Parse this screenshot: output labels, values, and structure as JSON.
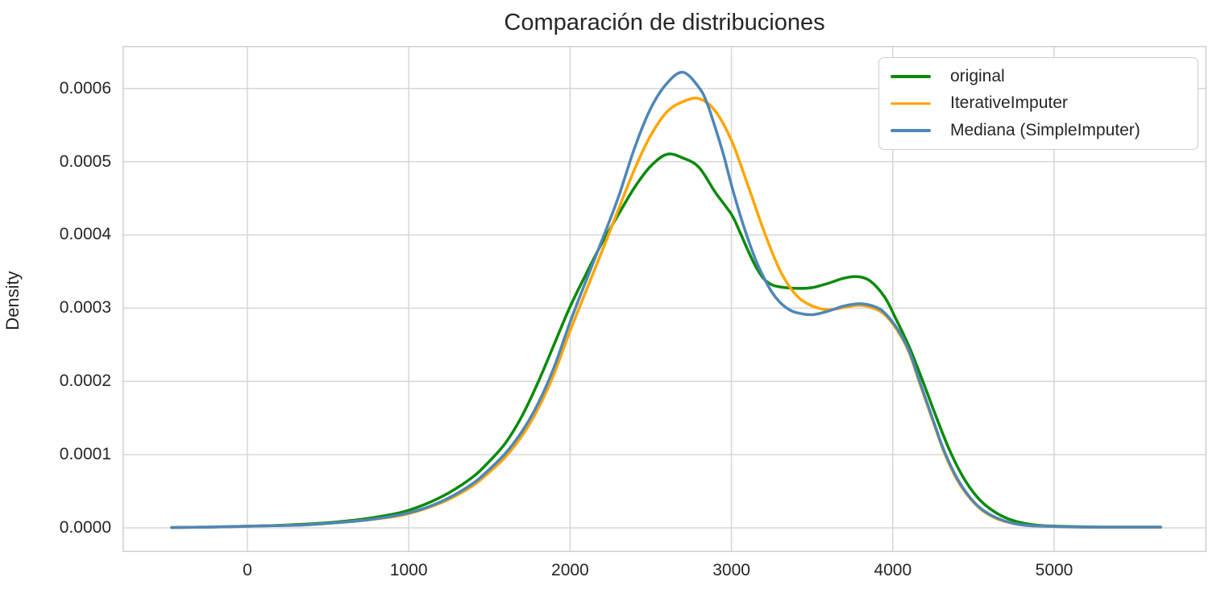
{
  "title": "Comparación de distribuciones",
  "colors": {
    "original": "#0a8a0a",
    "iterative_imputer": "#ffa500",
    "mediana_simple_imputer": "#4e86b8",
    "grid": "#d6d6d6",
    "axes_border": "#d0d0d0",
    "text": "#262626",
    "background": "#ffffff"
  },
  "chart_data": {
    "type": "line",
    "title": "Comparación de distribuciones",
    "xlabel": "",
    "ylabel": "Density",
    "grid": true,
    "legend_position": "upper right",
    "xlim": [
      -774,
      5944
    ],
    "ylim": [
      -3.3e-05,
      0.000658
    ],
    "x_ticks": [
      0,
      1000,
      2000,
      3000,
      4000,
      5000
    ],
    "x_tick_labels": [
      "0",
      "1000",
      "2000",
      "3000",
      "4000",
      "5000"
    ],
    "y_ticks": [
      0,
      0.0001,
      0.0002,
      0.0003,
      0.0004,
      0.0005,
      0.0006
    ],
    "y_tick_labels": [
      "0.0000",
      "0.0001",
      "0.0002",
      "0.0003",
      "0.0004",
      "0.0005",
      "0.0006"
    ],
    "series": [
      {
        "name": "original",
        "color": "#0a8a0a",
        "peak": {
          "x": 2600,
          "density": 0.00051
        },
        "points": [
          [
            -470,
            5e-07
          ],
          [
            -250,
            1e-06
          ],
          [
            -50,
            2e-06
          ],
          [
            150,
            3e-06
          ],
          [
            350,
            5e-06
          ],
          [
            550,
            8e-06
          ],
          [
            750,
            1.3e-05
          ],
          [
            950,
            2.1e-05
          ],
          [
            1100,
            3.2e-05
          ],
          [
            1250,
            4.8e-05
          ],
          [
            1400,
            7e-05
          ],
          [
            1500,
            9.1e-05
          ],
          [
            1600,
            0.000116
          ],
          [
            1700,
            0.000152
          ],
          [
            1800,
            0.000198
          ],
          [
            1900,
            0.00025
          ],
          [
            2000,
            0.000302
          ],
          [
            2100,
            0.000347
          ],
          [
            2200,
            0.00039
          ],
          [
            2300,
            0.000428
          ],
          [
            2400,
            0.000465
          ],
          [
            2500,
            0.000494
          ],
          [
            2600,
            0.00051
          ],
          [
            2700,
            0.000505
          ],
          [
            2800,
            0.000492
          ],
          [
            2900,
            0.000458
          ],
          [
            3000,
            0.000428
          ],
          [
            3050,
            0.000405
          ],
          [
            3100,
            0.00038
          ],
          [
            3150,
            0.000357
          ],
          [
            3200,
            0.00034
          ],
          [
            3250,
            0.000332
          ],
          [
            3300,
            0.000329
          ],
          [
            3400,
            0.000327
          ],
          [
            3500,
            0.000328
          ],
          [
            3600,
            0.000334
          ],
          [
            3700,
            0.000341
          ],
          [
            3780,
            0.000343
          ],
          [
            3860,
            0.000337
          ],
          [
            3950,
            0.000315
          ],
          [
            4020,
            0.000285
          ],
          [
            4100,
            0.000248
          ],
          [
            4190,
            0.000198
          ],
          [
            4280,
            0.000145
          ],
          [
            4360,
            0.000102
          ],
          [
            4450,
            6.4e-05
          ],
          [
            4540,
            3.8e-05
          ],
          [
            4630,
            2.2e-05
          ],
          [
            4720,
            1.2e-05
          ],
          [
            4820,
            6e-06
          ],
          [
            4930,
            3e-06
          ],
          [
            5080,
            2e-06
          ],
          [
            5300,
            1e-06
          ],
          [
            5660,
            1e-06
          ]
        ]
      },
      {
        "name": "IterativeImputer",
        "color": "#ffa500",
        "peak": {
          "x": 2800,
          "density": 0.000586
        },
        "points": [
          [
            -470,
            5e-07
          ],
          [
            -250,
            1e-06
          ],
          [
            -50,
            2e-06
          ],
          [
            150,
            3e-06
          ],
          [
            350,
            4e-06
          ],
          [
            550,
            7e-06
          ],
          [
            750,
            1.1e-05
          ],
          [
            950,
            1.7e-05
          ],
          [
            1100,
            2.6e-05
          ],
          [
            1250,
            3.9e-05
          ],
          [
            1400,
            5.8e-05
          ],
          [
            1500,
            7.6e-05
          ],
          [
            1600,
            9.7e-05
          ],
          [
            1700,
            0.000125
          ],
          [
            1800,
            0.000162
          ],
          [
            1900,
            0.00021
          ],
          [
            2000,
            0.000269
          ],
          [
            2100,
            0.000324
          ],
          [
            2200,
            0.000379
          ],
          [
            2300,
            0.000435
          ],
          [
            2400,
            0.00049
          ],
          [
            2500,
            0.000536
          ],
          [
            2600,
            0.000568
          ],
          [
            2700,
            0.000582
          ],
          [
            2800,
            0.000586
          ],
          [
            2900,
            0.000569
          ],
          [
            3000,
            0.000529
          ],
          [
            3100,
            0.000469
          ],
          [
            3200,
            0.000406
          ],
          [
            3300,
            0.000352
          ],
          [
            3400,
            0.000318
          ],
          [
            3500,
            0.000303
          ],
          [
            3600,
            0.000298
          ],
          [
            3700,
            0.000301
          ],
          [
            3800,
            0.000304
          ],
          [
            3900,
            0.000298
          ],
          [
            3960,
            0.000289
          ],
          [
            4030,
            0.000269
          ],
          [
            4100,
            0.00024
          ],
          [
            4160,
            0.000202
          ],
          [
            4250,
            0.000145
          ],
          [
            4320,
            0.000102
          ],
          [
            4400,
            6.5e-05
          ],
          [
            4480,
            4e-05
          ],
          [
            4560,
            2.3e-05
          ],
          [
            4650,
            1.2e-05
          ],
          [
            4750,
            6e-06
          ],
          [
            4850,
            3e-06
          ],
          [
            5000,
            2e-06
          ],
          [
            5200,
            1e-06
          ],
          [
            5660,
            1e-06
          ]
        ]
      },
      {
        "name": "Mediana (SimpleImputer)",
        "color": "#4e86b8",
        "peak": {
          "x": 2700,
          "density": 0.000622
        },
        "points": [
          [
            -470,
            5e-07
          ],
          [
            -250,
            1e-06
          ],
          [
            -50,
            2e-06
          ],
          [
            150,
            3e-06
          ],
          [
            350,
            4e-06
          ],
          [
            550,
            7e-06
          ],
          [
            750,
            1.1e-05
          ],
          [
            950,
            1.8e-05
          ],
          [
            1100,
            2.7e-05
          ],
          [
            1250,
            4.1e-05
          ],
          [
            1400,
            6.1e-05
          ],
          [
            1500,
            8e-05
          ],
          [
            1600,
            0.000102
          ],
          [
            1700,
            0.000131
          ],
          [
            1800,
            0.000169
          ],
          [
            1900,
            0.000219
          ],
          [
            2000,
            0.000281
          ],
          [
            2100,
            0.000338
          ],
          [
            2200,
            0.000394
          ],
          [
            2300,
            0.000452
          ],
          [
            2400,
            0.000519
          ],
          [
            2500,
            0.000573
          ],
          [
            2600,
            0.000607
          ],
          [
            2700,
            0.000622
          ],
          [
            2800,
            0.000601
          ],
          [
            2850,
            0.000579
          ],
          [
            2900,
            0.000546
          ],
          [
            2950,
            0.00051
          ],
          [
            3000,
            0.000468
          ],
          [
            3050,
            0.00043
          ],
          [
            3100,
            0.000396
          ],
          [
            3150,
            0.000366
          ],
          [
            3200,
            0.000342
          ],
          [
            3250,
            0.000322
          ],
          [
            3300,
            0.000308
          ],
          [
            3350,
            0.000299
          ],
          [
            3400,
            0.000294
          ],
          [
            3500,
            0.000291
          ],
          [
            3600,
            0.000296
          ],
          [
            3700,
            0.000303
          ],
          [
            3800,
            0.000306
          ],
          [
            3900,
            0.000301
          ],
          [
            3960,
            0.000291
          ],
          [
            4030,
            0.000271
          ],
          [
            4100,
            0.000242
          ],
          [
            4160,
            0.000204
          ],
          [
            4250,
            0.000147
          ],
          [
            4320,
            0.000104
          ],
          [
            4400,
            6.7e-05
          ],
          [
            4480,
            4.1e-05
          ],
          [
            4560,
            2.4e-05
          ],
          [
            4650,
            1.3e-05
          ],
          [
            4750,
            6e-06
          ],
          [
            4850,
            3e-06
          ],
          [
            5000,
            2e-06
          ],
          [
            5200,
            1e-06
          ],
          [
            5660,
            1e-06
          ]
        ]
      }
    ]
  },
  "legend": {
    "items": [
      "original",
      "IterativeImputer",
      "Mediana (SimpleImputer)"
    ]
  }
}
